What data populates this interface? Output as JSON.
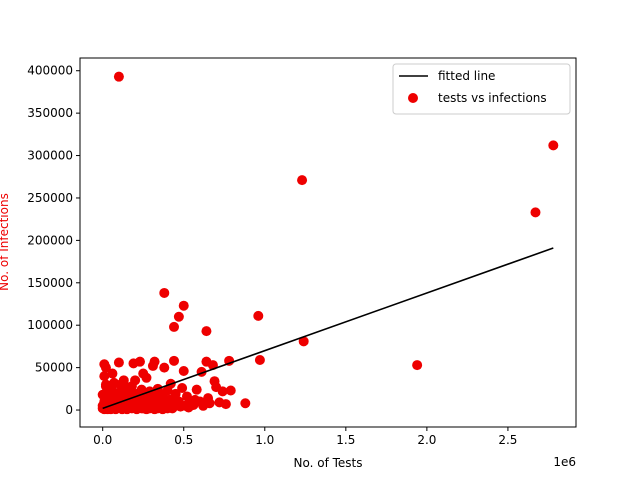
{
  "chart_data": {
    "type": "scatter",
    "xlabel": "No. of Tests",
    "ylabel": "No. of Infections",
    "x_scale_label": "1e6",
    "xlim": [
      -0.14,
      2.92
    ],
    "ylim": [
      -20000,
      415000
    ],
    "x_ticks": [
      0.0,
      0.5,
      1.0,
      1.5,
      2.0,
      2.5
    ],
    "x_tick_labels": [
      "0.0",
      "0.5",
      "1.0",
      "1.5",
      "2.0",
      "2.5"
    ],
    "y_ticks": [
      0,
      50000,
      100000,
      150000,
      200000,
      250000,
      300000,
      350000,
      400000
    ],
    "y_tick_labels": [
      "0",
      "50000",
      "100000",
      "150000",
      "200000",
      "250000",
      "300000",
      "350000",
      "400000"
    ],
    "grid": false,
    "legend_position": "top-right",
    "colors": {
      "points": "#ee0000",
      "line": "#000000",
      "ylabel": "#ee0000"
    },
    "series": [
      {
        "name": "fitted line",
        "kind": "line",
        "x": [
          0.0,
          2.78
        ],
        "y": [
          2000,
          191000
        ]
      },
      {
        "name": "tests vs infections",
        "kind": "scatter",
        "points": [
          [
            0.1,
            393000
          ],
          [
            2.78,
            312000
          ],
          [
            1.23,
            271000
          ],
          [
            2.67,
            233000
          ],
          [
            0.38,
            138000
          ],
          [
            0.5,
            123000
          ],
          [
            0.47,
            110000
          ],
          [
            0.96,
            111000
          ],
          [
            0.44,
            98000
          ],
          [
            0.64,
            93000
          ],
          [
            1.24,
            81000
          ],
          [
            0.97,
            59000
          ],
          [
            0.78,
            58000
          ],
          [
            0.44,
            58000
          ],
          [
            0.64,
            57000
          ],
          [
            1.94,
            53000
          ],
          [
            0.01,
            54000
          ],
          [
            0.02,
            50000
          ],
          [
            0.1,
            56000
          ],
          [
            0.23,
            57000
          ],
          [
            0.32,
            57000
          ],
          [
            0.31,
            52000
          ],
          [
            0.19,
            55000
          ],
          [
            0.38,
            50000
          ],
          [
            0.68,
            53000
          ],
          [
            0.5,
            46000
          ],
          [
            0.06,
            43000
          ],
          [
            0.25,
            43000
          ],
          [
            0.61,
            45000
          ],
          [
            0.01,
            40000
          ],
          [
            0.27,
            38000
          ],
          [
            0.13,
            35000
          ],
          [
            0.2,
            35000
          ],
          [
            0.07,
            32000
          ],
          [
            0.42,
            31000
          ],
          [
            0.69,
            34000
          ],
          [
            0.02,
            30000
          ],
          [
            0.02,
            28000
          ],
          [
            0.06,
            29000
          ],
          [
            0.11,
            30000
          ],
          [
            0.15,
            27000
          ],
          [
            0.18,
            28000
          ],
          [
            0.24,
            24000
          ],
          [
            0.29,
            22000
          ],
          [
            0.34,
            25000
          ],
          [
            0.4,
            23000
          ],
          [
            0.49,
            26000
          ],
          [
            0.58,
            24000
          ],
          [
            0.7,
            27000
          ],
          [
            0.74,
            22000
          ],
          [
            0.79,
            23000
          ],
          [
            0.03,
            25000
          ],
          [
            0.05,
            22000
          ],
          [
            0.09,
            20000
          ],
          [
            0.12,
            18000
          ],
          [
            0.16,
            22000
          ],
          [
            0.21,
            19000
          ],
          [
            0.26,
            17000
          ],
          [
            0.33,
            18000
          ],
          [
            0.37,
            16000
          ],
          [
            0.45,
            19000
          ],
          [
            0.52,
            16000
          ],
          [
            0.0,
            18000
          ],
          [
            0.04,
            15000
          ],
          [
            0.08,
            14000
          ],
          [
            0.14,
            13000
          ],
          [
            0.22,
            12000
          ],
          [
            0.28,
            13000
          ],
          [
            0.35,
            11000
          ],
          [
            0.41,
            12000
          ],
          [
            0.47,
            10000
          ],
          [
            0.54,
            9000
          ],
          [
            0.6,
            10000
          ],
          [
            0.66,
            8000
          ],
          [
            0.72,
            9000
          ],
          [
            0.76,
            7000
          ],
          [
            0.88,
            8000
          ],
          [
            0.62,
            5000
          ],
          [
            0.01,
            10000
          ],
          [
            0.02,
            8000
          ],
          [
            0.03,
            6000
          ],
          [
            0.05,
            9000
          ],
          [
            0.06,
            5000
          ],
          [
            0.07,
            7000
          ],
          [
            0.09,
            4000
          ],
          [
            0.1,
            8000
          ],
          [
            0.11,
            3000
          ],
          [
            0.13,
            6000
          ],
          [
            0.14,
            2000
          ],
          [
            0.16,
            5000
          ],
          [
            0.17,
            7000
          ],
          [
            0.19,
            3000
          ],
          [
            0.2,
            6000
          ],
          [
            0.22,
            4000
          ],
          [
            0.23,
            8000
          ],
          [
            0.25,
            2000
          ],
          [
            0.26,
            5000
          ],
          [
            0.28,
            7000
          ],
          [
            0.3,
            3000
          ],
          [
            0.31,
            6000
          ],
          [
            0.33,
            4000
          ],
          [
            0.36,
            5000
          ],
          [
            0.38,
            3000
          ],
          [
            0.39,
            7000
          ],
          [
            0.42,
            5000
          ],
          [
            0.43,
            2000
          ],
          [
            0.46,
            6000
          ],
          [
            0.48,
            4000
          ],
          [
            0.51,
            5000
          ],
          [
            0.53,
            3000
          ],
          [
            0.56,
            6000
          ],
          [
            0.0,
            2000
          ],
          [
            0.01,
            1000
          ],
          [
            0.02,
            3000
          ],
          [
            0.03,
            1000
          ],
          [
            0.04,
            2000
          ],
          [
            0.05,
            1000
          ],
          [
            0.06,
            3000
          ],
          [
            0.08,
            1000
          ],
          [
            0.09,
            2000
          ],
          [
            0.12,
            1000
          ],
          [
            0.15,
            1000
          ],
          [
            0.18,
            2000
          ],
          [
            0.21,
            1000
          ],
          [
            0.24,
            2000
          ],
          [
            0.27,
            1000
          ],
          [
            0.29,
            2000
          ],
          [
            0.32,
            1000
          ],
          [
            0.34,
            2000
          ],
          [
            0.37,
            1000
          ],
          [
            0.4,
            2000
          ],
          [
            0.0,
            5000
          ],
          [
            0.01,
            6000
          ],
          [
            0.02,
            14000
          ],
          [
            0.03,
            12000
          ],
          [
            0.04,
            10000
          ],
          [
            0.05,
            16000
          ],
          [
            0.07,
            12000
          ],
          [
            0.08,
            18000
          ],
          [
            0.1,
            14000
          ],
          [
            0.12,
            22000
          ],
          [
            0.14,
            16000
          ],
          [
            0.17,
            12000
          ],
          [
            0.19,
            15000
          ],
          [
            0.23,
            14000
          ],
          [
            0.26,
            11000
          ],
          [
            0.3,
            15000
          ],
          [
            0.35,
            20000
          ],
          [
            0.44,
            14000
          ],
          [
            0.57,
            12000
          ],
          [
            0.65,
            14000
          ]
        ]
      }
    ]
  }
}
